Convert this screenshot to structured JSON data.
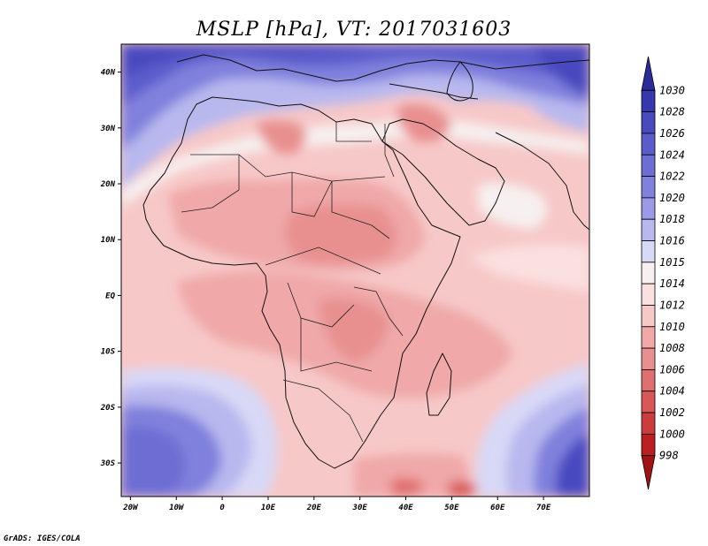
{
  "title": "MSLP [hPa], VT: 2017031603",
  "credit": "GrADS: IGES/COLA",
  "map": {
    "lon_range": [
      -22,
      80
    ],
    "lat_range": [
      -36,
      45
    ],
    "lon_ticks": [
      {
        "value": -20,
        "label": "20W"
      },
      {
        "value": -10,
        "label": "10W"
      },
      {
        "value": 0,
        "label": "0"
      },
      {
        "value": 10,
        "label": "10E"
      },
      {
        "value": 20,
        "label": "20E"
      },
      {
        "value": 30,
        "label": "30E"
      },
      {
        "value": 40,
        "label": "40E"
      },
      {
        "value": 50,
        "label": "50E"
      },
      {
        "value": 60,
        "label": "60E"
      },
      {
        "value": 70,
        "label": "70E"
      }
    ],
    "lat_ticks": [
      {
        "value": 40,
        "label": "40N"
      },
      {
        "value": 30,
        "label": "30N"
      },
      {
        "value": 20,
        "label": "20N"
      },
      {
        "value": 10,
        "label": "10N"
      },
      {
        "value": 0,
        "label": "EQ"
      },
      {
        "value": -10,
        "label": "10S"
      },
      {
        "value": -20,
        "label": "20S"
      },
      {
        "value": -30,
        "label": "30S"
      }
    ]
  },
  "colorbar": {
    "levels": [
      "1030",
      "1028",
      "1026",
      "1024",
      "1022",
      "1020",
      "1018",
      "1016",
      "1015",
      "1014",
      "1012",
      "1010",
      "1008",
      "1006",
      "1004",
      "1002",
      "1000",
      "998"
    ],
    "colors": [
      "#2b2b9a",
      "#3636ad",
      "#4a4abf",
      "#5b5bcc",
      "#6d6dd4",
      "#8080dd",
      "#9a9ae6",
      "#b8b8ef",
      "#d8d8f7",
      "#f7f0f0",
      "#fbe0e0",
      "#f7c8c8",
      "#f0a8a8",
      "#e89090",
      "#e07070",
      "#d85858",
      "#cc3c3c",
      "#bb2020",
      "#a01414"
    ]
  }
}
